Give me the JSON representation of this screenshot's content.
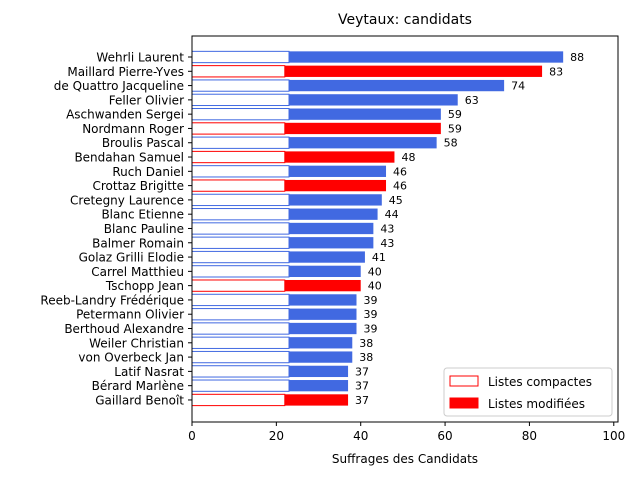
{
  "chart_data": {
    "type": "bar",
    "orientation": "horizontal",
    "stacked": true,
    "title": "Veytaux: candidats",
    "xlabel": "Suffrages des Candidats",
    "ylabel": "",
    "xlim": [
      0,
      101
    ],
    "xticks": [
      0,
      20,
      40,
      60,
      80,
      100
    ],
    "grid": false,
    "legend_position": "lower-right",
    "legend": [
      {
        "name": "Listes compactes",
        "style": "outline",
        "color": "#ff0000"
      },
      {
        "name": "Listes modifiées",
        "style": "filled",
        "color": "#ff0000"
      }
    ],
    "colors": {
      "blue": "#4169e1",
      "red": "#ff0000"
    },
    "categories": [
      "Wehrli Laurent",
      "Maillard Pierre-Yves",
      "de Quattro Jacqueline",
      "Feller Olivier",
      "Aschwanden Sergei",
      "Nordmann Roger",
      "Broulis Pascal",
      "Bendahan Samuel",
      "Ruch Daniel",
      "Crottaz Brigitte",
      "Cretegny Laurence",
      "Blanc Etienne",
      "Blanc Pauline",
      "Balmer Romain",
      "Golaz Grilli Elodie",
      "Carrel Matthieu",
      "Tschopp Jean",
      "Reeb-Landry Frédérique",
      "Petermann Olivier",
      "Berthoud Alexandre",
      "Weiler Christian",
      "von Overbeck Jan",
      "Latif Nasrat",
      "Bérard Marlène",
      "Gaillard Benoît"
    ],
    "party_color": [
      "blue",
      "red",
      "blue",
      "blue",
      "blue",
      "red",
      "blue",
      "red",
      "blue",
      "red",
      "blue",
      "blue",
      "blue",
      "blue",
      "blue",
      "blue",
      "red",
      "blue",
      "blue",
      "blue",
      "blue",
      "blue",
      "blue",
      "blue",
      "red"
    ],
    "series": [
      {
        "name": "Listes compactes",
        "values": [
          23,
          22,
          23,
          23,
          23,
          22,
          23,
          22,
          23,
          22,
          23,
          23,
          23,
          23,
          23,
          23,
          22,
          23,
          23,
          23,
          23,
          23,
          23,
          23,
          22
        ]
      },
      {
        "name": "Listes modifiées",
        "values": [
          65,
          61,
          51,
          40,
          36,
          37,
          35,
          26,
          23,
          24,
          22,
          21,
          20,
          20,
          18,
          17,
          18,
          16,
          16,
          16,
          15,
          15,
          14,
          14,
          15
        ]
      }
    ],
    "totals": [
      88,
      83,
      74,
      63,
      59,
      59,
      58,
      48,
      46,
      46,
      45,
      44,
      43,
      43,
      41,
      40,
      40,
      39,
      39,
      39,
      38,
      38,
      37,
      37,
      37
    ]
  }
}
